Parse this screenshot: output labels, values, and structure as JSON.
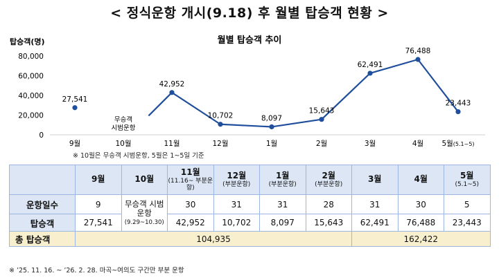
{
  "page": {
    "title": "< 정식운항 개시(9.18) 후 월별 탑승객 현황 >",
    "chart_note": "※ 10월은 무승객 시범운항, 5월은 1~5일 기준",
    "footer_note": "※ ’25. 11. 16. ~ ’26. 2. 28. 마곡~여의도 구간만 부분 운항"
  },
  "chart_data": {
    "type": "line",
    "title": "월별 탑승객 추이",
    "ylabel": "탑승객(명)",
    "ylim": [
      0,
      80000
    ],
    "yticks": [
      "0",
      "20,000",
      "40,000",
      "60,000",
      "80,000"
    ],
    "grid": false,
    "categories": [
      "9월",
      "10월",
      "11월",
      "12월",
      "1월",
      "2월",
      "3월",
      "4월",
      "5월"
    ],
    "category_suffix": {
      "8": "(5.1~5)"
    },
    "series": [
      {
        "color": "#1f4e9c",
        "values": [
          27541,
          null,
          42952,
          10702,
          8097,
          15643,
          62491,
          76488,
          23443
        ],
        "labels": [
          "27,541",
          "",
          "42,952",
          "10,702",
          "8,097",
          "15,643",
          "62,491",
          "76,488",
          "23,443"
        ]
      }
    ],
    "annotations": [
      {
        "category": "10월",
        "lines": [
          "무승객",
          "시범운항"
        ]
      }
    ]
  },
  "table": {
    "months": [
      {
        "label": "9월",
        "sub": ""
      },
      {
        "label": "10월",
        "sub": ""
      },
      {
        "label": "11월",
        "sub": "(11.16~ 부분운항)"
      },
      {
        "label": "12월",
        "sub": "(부분운항)"
      },
      {
        "label": "1월",
        "sub": "(부분운항)"
      },
      {
        "label": "2월",
        "sub": "(부분운항)"
      },
      {
        "label": "3월",
        "sub": ""
      },
      {
        "label": "4월",
        "sub": ""
      },
      {
        "label": "5월",
        "sub": "(5.1~5)"
      }
    ],
    "rows": {
      "days_label": "운항일수",
      "days": [
        "9",
        "",
        "30",
        "31",
        "31",
        "28",
        "31",
        "30",
        "5"
      ],
      "trial_label": "무승객 시범운항",
      "trial_sub": "(9.29~10.30)",
      "pax_label": "탑승객",
      "pax": [
        "27,541",
        "",
        "42,952",
        "10,702",
        "8,097",
        "15,643",
        "62,491",
        "76,488",
        "23,443"
      ],
      "total_label": "총 탑승객",
      "total_a": "104,935",
      "total_b": "162,422"
    }
  }
}
